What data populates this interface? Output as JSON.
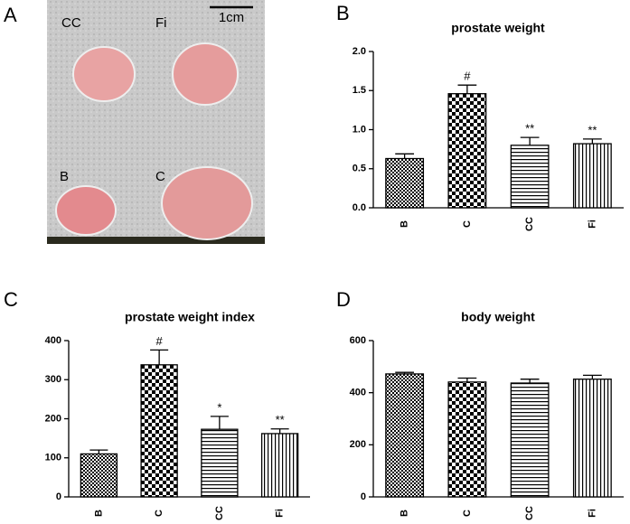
{
  "photo": {
    "panel": "A",
    "labels": [
      "CC",
      "Fi",
      "B",
      "C"
    ],
    "scale": "1cm"
  },
  "chart_data": [
    {
      "type": "bar",
      "panel": "B",
      "title": "prostate weight",
      "categories": [
        "B",
        "C",
        "CC",
        "Fi"
      ],
      "values": [
        0.63,
        1.46,
        0.8,
        0.82
      ],
      "errors": [
        0.06,
        0.11,
        0.1,
        0.06
      ],
      "annotations": [
        null,
        "#",
        "**",
        "**"
      ],
      "ylim": [
        0,
        2.0
      ],
      "yticks": [
        {
          "value": 0,
          "label": "0.0"
        },
        {
          "value": 0.5,
          "label": "0.5"
        },
        {
          "value": 1.0,
          "label": "1.0"
        },
        {
          "value": 1.5,
          "label": "1.5"
        },
        {
          "value": 2.0,
          "label": "2.0"
        }
      ]
    },
    {
      "type": "bar",
      "panel": "C",
      "title": "prostate weight index",
      "categories": [
        "B",
        "C",
        "CC",
        "Fi"
      ],
      "values": [
        110,
        338,
        173,
        162
      ],
      "errors": [
        10,
        38,
        33,
        12
      ],
      "annotations": [
        null,
        "#",
        "*",
        "**"
      ],
      "ylim": [
        0,
        400
      ],
      "yticks": [
        0,
        100,
        200,
        300,
        400
      ]
    },
    {
      "type": "bar",
      "panel": "D",
      "title": "body weight",
      "categories": [
        "B",
        "C",
        "CC",
        "Fi"
      ],
      "values": [
        472,
        441,
        437,
        452
      ],
      "errors": [
        6,
        15,
        15,
        15
      ],
      "ylim": [
        0,
        600
      ],
      "yticks": [
        0,
        200,
        400,
        600
      ]
    }
  ]
}
